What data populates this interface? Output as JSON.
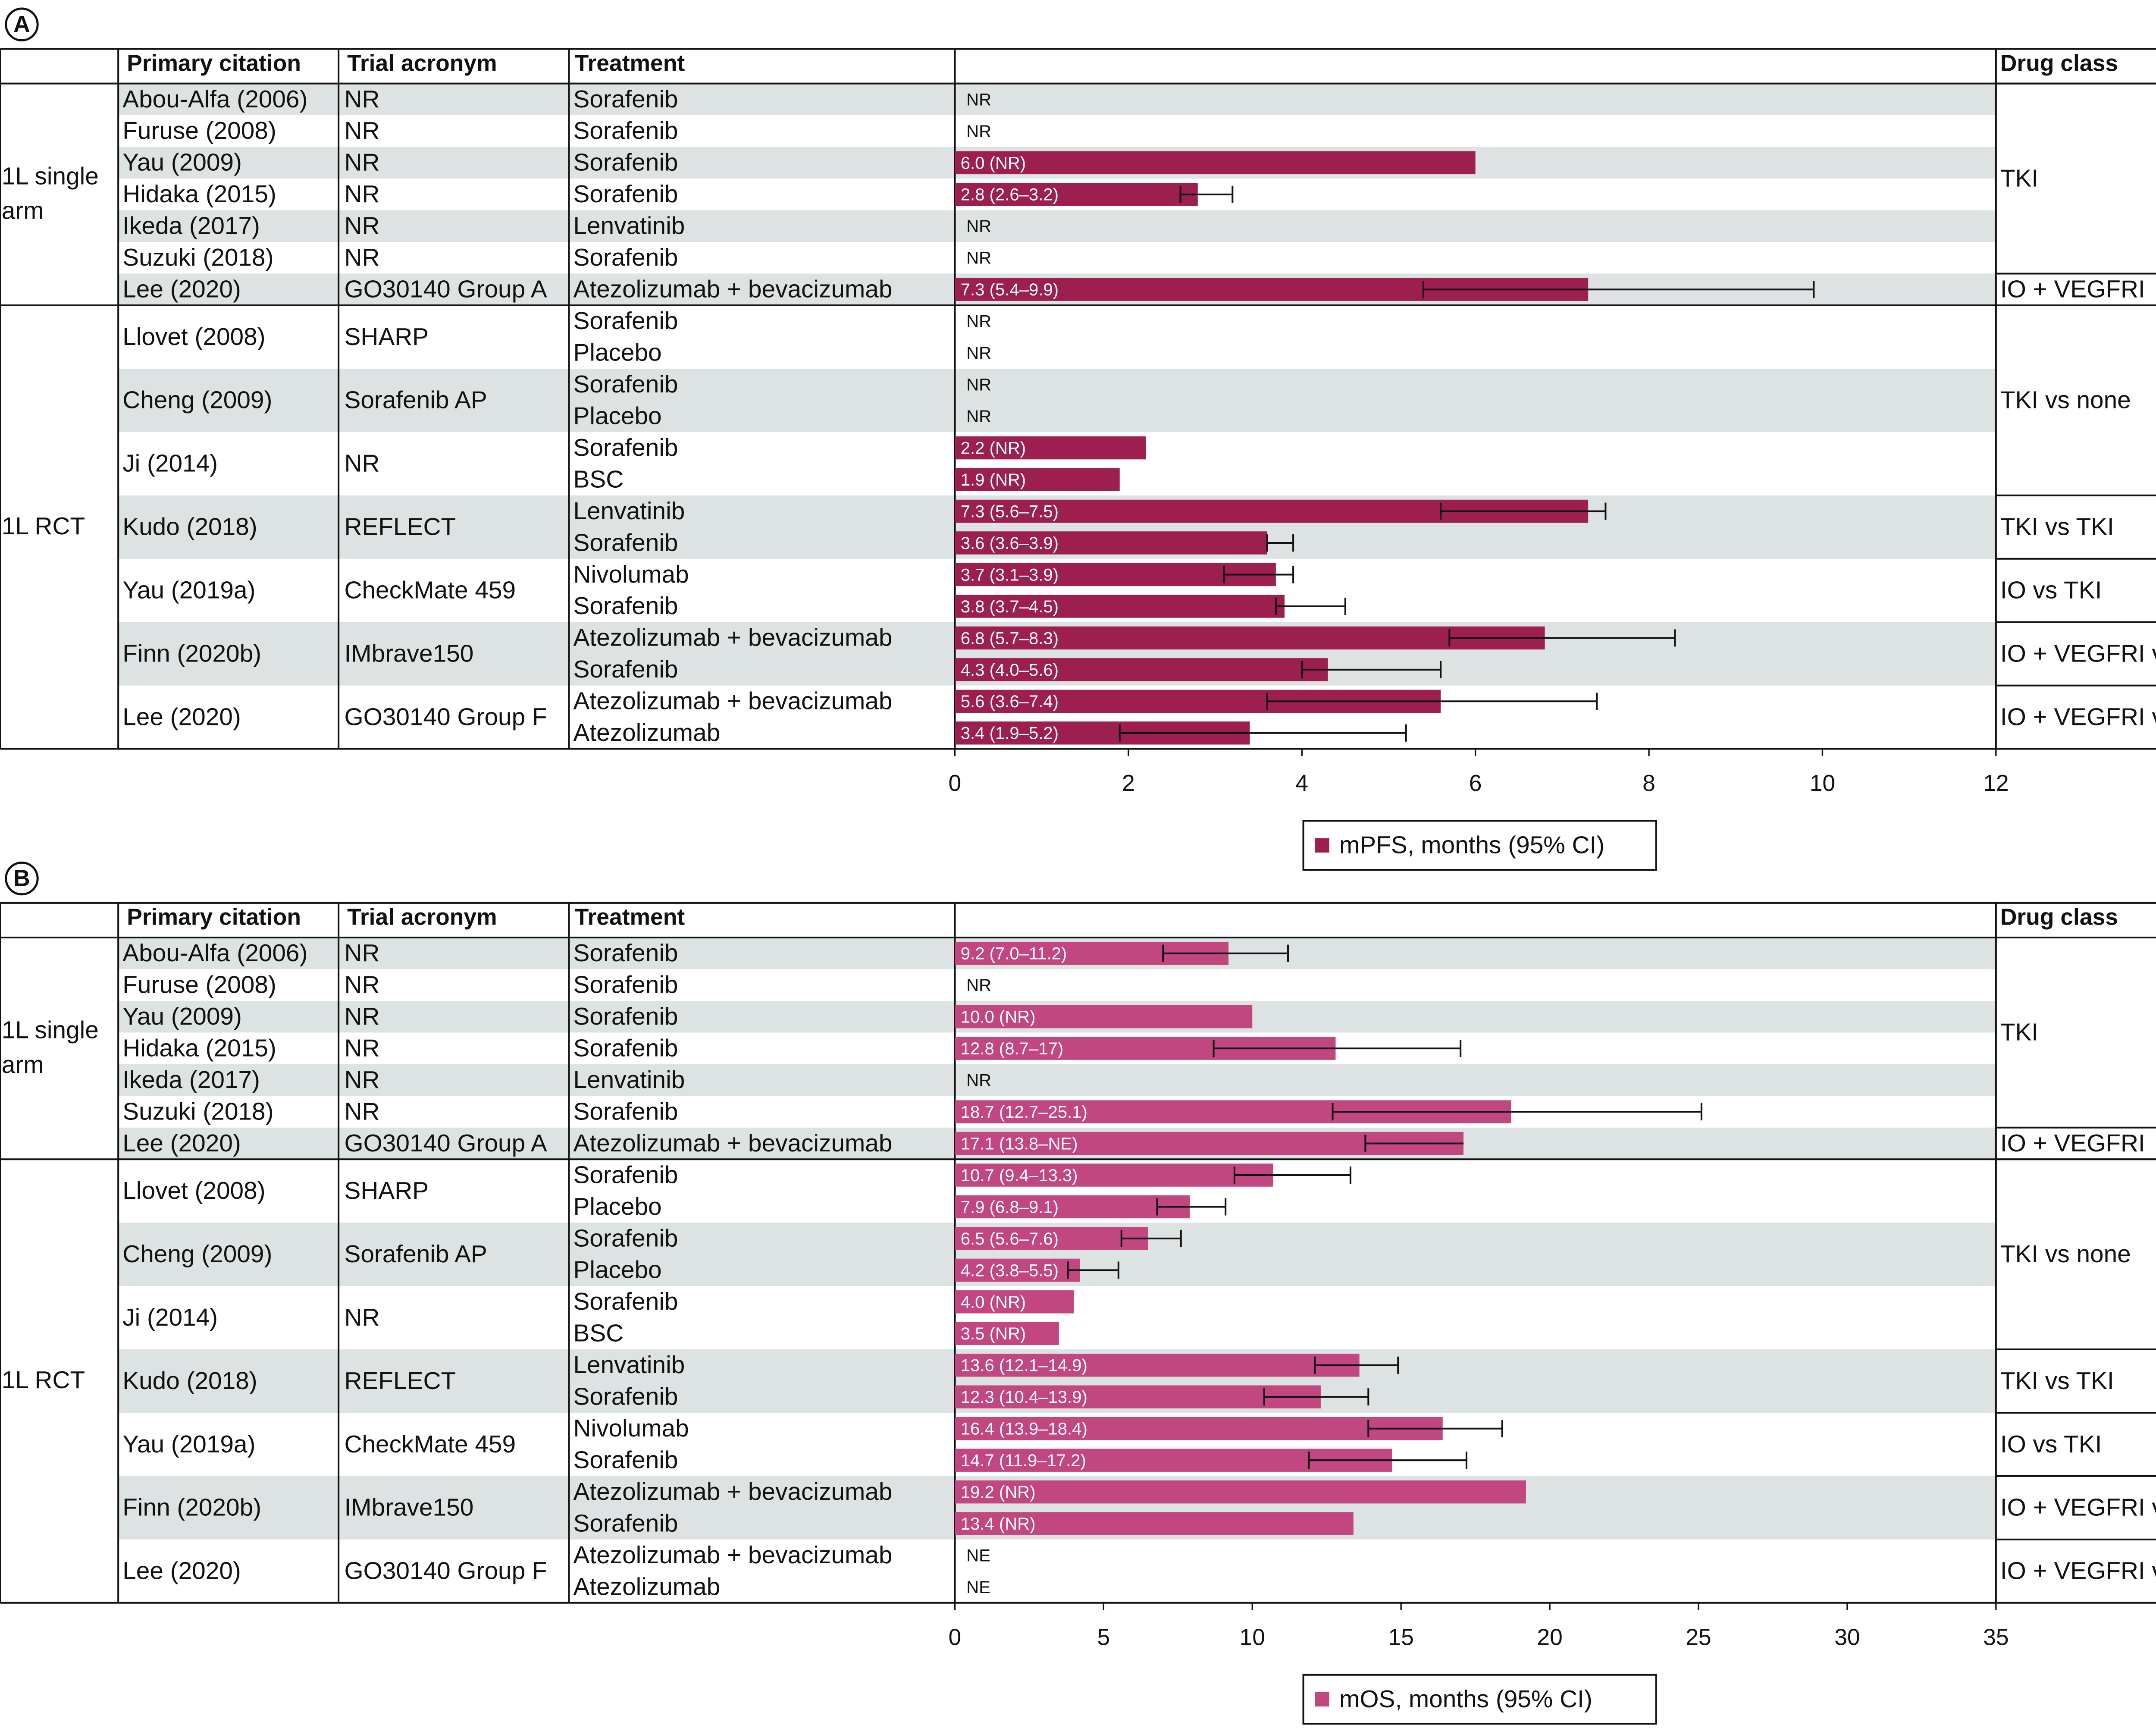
{
  "chart_data": [
    {
      "type": "bar",
      "panel": "A",
      "columns": [
        "Primary citation",
        "Trial acronym",
        "Treatment",
        "Drug class"
      ],
      "groups": [
        "1L single arm",
        null,
        null,
        null,
        null,
        null,
        null,
        "1L RCT",
        null,
        null,
        null,
        null,
        null,
        null,
        null,
        null,
        null,
        null,
        null,
        null,
        null
      ],
      "citations": [
        "Abou-Alfa (2006)",
        "Furuse (2008)",
        "Yau (2009)",
        "Hidaka (2015)",
        "Ikeda (2017)",
        "Suzuki (2018)",
        "Lee (2020)",
        "Llovet (2008)",
        null,
        "Cheng (2009)",
        null,
        "Ji (2014)",
        null,
        "Kudo (2018)",
        null,
        "Yau (2019a)",
        null,
        "Finn (2020b)",
        null,
        "Lee (2020)",
        null
      ],
      "acronyms": [
        "NR",
        "NR",
        "NR",
        "NR",
        "NR",
        "NR",
        "GO30140 Group A",
        "SHARP",
        null,
        "Sorafenib AP",
        null,
        "NR",
        null,
        "REFLECT",
        null,
        "CheckMate 459",
        null,
        "IMbrave150",
        null,
        "GO30140 Group F",
        null
      ],
      "categories": [
        "Sorafenib",
        "Sorafenib",
        "Sorafenib",
        "Sorafenib",
        "Lenvatinib",
        "Sorafenib",
        "Atezolizumab + bevacizumab",
        "Sorafenib",
        "Placebo",
        "Sorafenib",
        "Placebo",
        "Sorafenib",
        "BSC",
        "Lenvatinib",
        "Sorafenib",
        "Nivolumab",
        "Sorafenib",
        "Atezolizumab + bevacizumab",
        "Sorafenib",
        "Atezolizumab + bevacizumab",
        "Atezolizumab"
      ],
      "drug_classes": [
        "TKI",
        null,
        null,
        null,
        null,
        null,
        "IO + VEGFRI",
        "TKI vs none",
        null,
        null,
        null,
        null,
        null,
        "TKI vs TKI",
        null,
        "IO vs TKI",
        null,
        "IO + VEGFRI vs TKI",
        null,
        "IO + VEGFRI vs IO",
        null
      ],
      "series": [
        {
          "name": "mPFS, months (95% CI)",
          "color": "#9c1f4f",
          "values": [
            null,
            null,
            6.0,
            2.8,
            null,
            null,
            7.3,
            null,
            null,
            null,
            null,
            2.2,
            1.9,
            7.3,
            3.6,
            3.7,
            3.8,
            6.8,
            4.3,
            5.6,
            3.4
          ],
          "ci_low": [
            null,
            null,
            null,
            2.6,
            null,
            null,
            5.4,
            null,
            null,
            null,
            null,
            null,
            null,
            5.6,
            3.6,
            3.1,
            3.7,
            5.7,
            4.0,
            3.6,
            1.9
          ],
          "ci_high": [
            null,
            null,
            null,
            3.2,
            null,
            null,
            9.9,
            null,
            null,
            null,
            null,
            null,
            null,
            7.5,
            3.9,
            3.9,
            4.5,
            8.3,
            5.6,
            7.4,
            5.2
          ],
          "value_labels": [
            "NR",
            "NR",
            "6.0 (NR)",
            "2.8 (2.6–3.2)",
            "NR",
            "NR",
            "7.3 (5.4–9.9)",
            "NR",
            "NR",
            "NR",
            "NR",
            "2.2 (NR)",
            "1.9 (NR)",
            "7.3 (5.6–7.5)",
            "3.6 (3.6–3.9)",
            "3.7 (3.1–3.9)",
            "3.8 (3.7–4.5)",
            "6.8 (5.7–8.3)",
            "4.3 (4.0–5.6)",
            "5.6 (3.6–7.4)",
            "3.4 (1.9–5.2)"
          ]
        }
      ],
      "xlim": [
        0,
        12
      ],
      "xticks": [
        0,
        2,
        4,
        6,
        8,
        10,
        12
      ]
    },
    {
      "type": "bar",
      "panel": "B",
      "columns": [
        "Primary citation",
        "Trial acronym",
        "Treatment",
        "Drug class"
      ],
      "groups": [
        "1L single arm",
        null,
        null,
        null,
        null,
        null,
        null,
        "1L RCT",
        null,
        null,
        null,
        null,
        null,
        null,
        null,
        null,
        null,
        null,
        null,
        null,
        null
      ],
      "citations": [
        "Abou-Alfa (2006)",
        "Furuse (2008)",
        "Yau (2009)",
        "Hidaka (2015)",
        "Ikeda (2017)",
        "Suzuki (2018)",
        "Lee (2020)",
        "Llovet (2008)",
        null,
        "Cheng (2009)",
        null,
        "Ji (2014)",
        null,
        "Kudo (2018)",
        null,
        "Yau (2019a)",
        null,
        "Finn (2020b)",
        null,
        "Lee (2020)",
        null
      ],
      "acronyms": [
        "NR",
        "NR",
        "NR",
        "NR",
        "NR",
        "NR",
        "GO30140 Group A",
        "SHARP",
        null,
        "Sorafenib AP",
        null,
        "NR",
        null,
        "REFLECT",
        null,
        "CheckMate 459",
        null,
        "IMbrave150",
        null,
        "GO30140 Group F",
        null
      ],
      "categories": [
        "Sorafenib",
        "Sorafenib",
        "Sorafenib",
        "Sorafenib",
        "Lenvatinib",
        "Sorafenib",
        "Atezolizumab + bevacizumab",
        "Sorafenib",
        "Placebo",
        "Sorafenib",
        "Placebo",
        "Sorafenib",
        "BSC",
        "Lenvatinib",
        "Sorafenib",
        "Nivolumab",
        "Sorafenib",
        "Atezolizumab + bevacizumab",
        "Sorafenib",
        "Atezolizumab + bevacizumab",
        "Atezolizumab"
      ],
      "drug_classes": [
        "TKI",
        null,
        null,
        null,
        null,
        null,
        "IO + VEGFRI",
        "TKI vs none",
        null,
        null,
        null,
        null,
        null,
        "TKI vs TKI",
        null,
        "IO vs TKI",
        null,
        "IO + VEGFRI vs TKI",
        null,
        "IO + VEGFRI vs IO",
        null
      ],
      "series": [
        {
          "name": "mOS, months (95% CI)",
          "color": "#c2467f",
          "values": [
            9.2,
            null,
            10.0,
            12.8,
            null,
            18.7,
            17.1,
            10.7,
            7.9,
            6.5,
            4.2,
            4.0,
            3.5,
            13.6,
            12.3,
            16.4,
            14.7,
            19.2,
            13.4,
            null,
            null
          ],
          "ci_low": [
            7.0,
            null,
            null,
            8.7,
            null,
            12.7,
            13.8,
            9.4,
            6.8,
            5.6,
            3.8,
            null,
            null,
            12.1,
            10.4,
            13.9,
            11.9,
            null,
            null,
            null,
            null
          ],
          "ci_high": [
            11.2,
            null,
            null,
            17,
            null,
            25.1,
            null,
            13.3,
            9.1,
            7.6,
            5.5,
            null,
            null,
            14.9,
            13.9,
            18.4,
            17.2,
            null,
            null,
            null,
            null
          ],
          "value_labels": [
            "9.2 (7.0–11.2)",
            "NR",
            "10.0 (NR)",
            "12.8 (8.7–17)",
            "NR",
            "18.7 (12.7–25.1)",
            "17.1 (13.8–NE)",
            "10.7 (9.4–13.3)",
            "7.9 (6.8–9.1)",
            "6.5 (5.6–7.6)",
            "4.2 (3.8–5.5)",
            "4.0 (NR)",
            "3.5 (NR)",
            "13.6 (12.1–14.9)",
            "12.3 (10.4–13.9)",
            "16.4 (13.9–18.4)",
            "14.7 (11.9–17.2)",
            "19.2 (NR)",
            "13.4 (NR)",
            "NE",
            "NE"
          ]
        }
      ],
      "xlim": [
        0,
        35
      ],
      "xticks": [
        0,
        5,
        10,
        15,
        20,
        25,
        30,
        35
      ]
    }
  ]
}
